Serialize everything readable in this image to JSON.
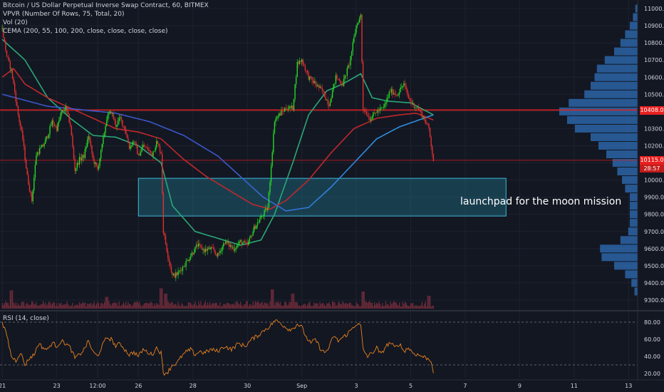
{
  "colors": {
    "background": "#131722",
    "grid": "#1e2230",
    "text": "#d1d4dc",
    "up": "#26d826",
    "down": "#e03030",
    "ema_red": "#c0282c",
    "ema_green": "#2aa876",
    "ema_blue": "#3a56c8",
    "ema_lightblue": "#2e8ee0",
    "vpvr": "#2f6fb8",
    "zone_fill": "#1f6f86",
    "zone_border": "#3fb8d8",
    "rsi_line": "#e8821e",
    "volume": "#6e2b3a",
    "price_line": "#e82020"
  },
  "legend": {
    "title": "Bitcoin / US Dollar Perpetual Inverse Swap Contract, 60, BITMEX",
    "vpvr": "VPVR (Number Of Rows, 75, Total, 20)",
    "vol": "Vol (20)",
    "cema": "CEMA (200, 55, 100, 200, close, close, close, close)"
  },
  "rsi_legend": "RSI (14, close)",
  "annotation": "launchpad for the moon mission",
  "badges": {
    "last_price": "10115.0",
    "countdown": "28:57",
    "resistance": "10408.0"
  },
  "chart_data": [
    {
      "type": "candlestick",
      "title": "Bitcoin / US Dollar Perpetual Inverse Swap Contract, 60, BITMEX",
      "ylim": [
        9250,
        11050
      ],
      "y_ticks": [
        9300,
        9400,
        9500,
        9600,
        9700,
        9800,
        9900,
        10000,
        10100,
        10200,
        10300,
        10400,
        10500,
        10600,
        10700,
        10800,
        10900,
        11000
      ],
      "y_tick_labels": [
        "9300.0",
        "9400.0",
        "9500.0",
        "9600.0",
        "9700.0",
        "9800.0",
        "9900.0",
        "10000.0",
        "10100.0",
        "10200.0",
        "10300.0",
        "10400.0",
        "10500.0",
        "10600.0",
        "10700.0",
        "10800.0",
        "10900.0",
        "11000.0"
      ],
      "x_labels": [
        "21",
        "23",
        "12:00",
        "26",
        "28",
        "30",
        "Sep",
        "3",
        "5",
        "7",
        "9",
        "11",
        "13"
      ],
      "x_label_hours": [
        0,
        48,
        84,
        120,
        168,
        216,
        264,
        312,
        360,
        408,
        456,
        504,
        552
      ],
      "close_price_anchors": [
        [
          0,
          10880
        ],
        [
          4,
          10720
        ],
        [
          8,
          10640
        ],
        [
          10,
          10560
        ],
        [
          14,
          10380
        ],
        [
          18,
          10240
        ],
        [
          22,
          10020
        ],
        [
          26,
          9880
        ],
        [
          30,
          10150
        ],
        [
          36,
          10200
        ],
        [
          40,
          10260
        ],
        [
          44,
          10340
        ],
        [
          48,
          10300
        ],
        [
          52,
          10390
        ],
        [
          56,
          10420
        ],
        [
          60,
          10320
        ],
        [
          64,
          10060
        ],
        [
          68,
          10120
        ],
        [
          72,
          10140
        ],
        [
          76,
          10260
        ],
        [
          80,
          10120
        ],
        [
          84,
          10060
        ],
        [
          88,
          10200
        ],
        [
          92,
          10360
        ],
        [
          96,
          10400
        ],
        [
          100,
          10320
        ],
        [
          104,
          10360
        ],
        [
          108,
          10300
        ],
        [
          112,
          10190
        ],
        [
          116,
          10230
        ],
        [
          120,
          10140
        ],
        [
          124,
          10200
        ],
        [
          128,
          10180
        ],
        [
          132,
          10150
        ],
        [
          136,
          10220
        ],
        [
          140,
          10160
        ],
        [
          142,
          9700
        ],
        [
          146,
          9560
        ],
        [
          150,
          9440
        ],
        [
          154,
          9450
        ],
        [
          160,
          9500
        ],
        [
          166,
          9560
        ],
        [
          172,
          9620
        ],
        [
          178,
          9590
        ],
        [
          184,
          9600
        ],
        [
          190,
          9560
        ],
        [
          196,
          9640
        ],
        [
          204,
          9600
        ],
        [
          210,
          9640
        ],
        [
          216,
          9620
        ],
        [
          222,
          9720
        ],
        [
          228,
          9780
        ],
        [
          234,
          9840
        ],
        [
          236,
          10000
        ],
        [
          240,
          10350
        ],
        [
          244,
          10380
        ],
        [
          250,
          10420
        ],
        [
          256,
          10420
        ],
        [
          260,
          10680
        ],
        [
          264,
          10700
        ],
        [
          270,
          10600
        ],
        [
          276,
          10560
        ],
        [
          282,
          10520
        ],
        [
          288,
          10440
        ],
        [
          294,
          10600
        ],
        [
          300,
          10560
        ],
        [
          306,
          10680
        ],
        [
          312,
          10900
        ],
        [
          316,
          10960
        ],
        [
          318,
          10420
        ],
        [
          324,
          10360
        ],
        [
          330,
          10400
        ],
        [
          336,
          10420
        ],
        [
          342,
          10520
        ],
        [
          348,
          10500
        ],
        [
          354,
          10560
        ],
        [
          358,
          10480
        ],
        [
          362,
          10440
        ],
        [
          366,
          10420
        ],
        [
          370,
          10380
        ],
        [
          376,
          10300
        ],
        [
          380,
          10115
        ]
      ],
      "moving_averages": [
        {
          "period": 55,
          "points": [
            [
              0,
              10820
            ],
            [
              20,
              10700
            ],
            [
              40,
              10480
            ],
            [
              60,
              10360
            ],
            [
              80,
              10260
            ],
            [
              100,
              10250
            ],
            [
              120,
              10200
            ],
            [
              140,
              10100
            ],
            [
              150,
              9850
            ],
            [
              170,
              9700
            ],
            [
              190,
              9660
            ],
            [
              210,
              9620
            ],
            [
              228,
              9650
            ],
            [
              240,
              9800
            ],
            [
              256,
              10100
            ],
            [
              270,
              10380
            ],
            [
              286,
              10520
            ],
            [
              300,
              10560
            ],
            [
              316,
              10620
            ],
            [
              326,
              10480
            ],
            [
              340,
              10460
            ],
            [
              360,
              10450
            ],
            [
              380,
              10380
            ]
          ]
        },
        {
          "period": 100,
          "points": [
            [
              0,
              10600
            ],
            [
              10,
              10650
            ],
            [
              20,
              10560
            ],
            [
              40,
              10480
            ],
            [
              60,
              10420
            ],
            [
              80,
              10360
            ],
            [
              100,
              10300
            ],
            [
              120,
              10280
            ],
            [
              140,
              10240
            ],
            [
              160,
              10120
            ],
            [
              180,
              10020
            ],
            [
              200,
              9940
            ],
            [
              220,
              9860
            ],
            [
              236,
              9830
            ],
            [
              250,
              9880
            ],
            [
              270,
              10000
            ],
            [
              290,
              10160
            ],
            [
              310,
              10300
            ],
            [
              330,
              10360
            ],
            [
              350,
              10380
            ],
            [
              365,
              10390
            ],
            [
              380,
              10350
            ]
          ]
        },
        {
          "period": 200,
          "points": [
            [
              0,
              10500
            ],
            [
              40,
              10430
            ],
            [
              70,
              10410
            ],
            [
              100,
              10390
            ],
            [
              130,
              10340
            ],
            [
              160,
              10260
            ],
            [
              190,
              10140
            ],
            [
              210,
              10020
            ],
            [
              230,
              9900
            ],
            [
              250,
              9820
            ],
            [
              270,
              9840
            ],
            [
              290,
              9960
            ],
            [
              310,
              10100
            ],
            [
              330,
              10240
            ],
            [
              350,
              10310
            ],
            [
              380,
              10380
            ]
          ]
        }
      ],
      "horizontal_lines": [
        10408,
        10115
      ],
      "zone": {
        "label": "launchpad for the moon mission",
        "from_hour": 120,
        "to_hour": 444,
        "y_low": 9790,
        "y_high": 10010
      },
      "volume_profile": {
        "levels": [
          11000,
          10950,
          10900,
          10850,
          10800,
          10750,
          10700,
          10650,
          10600,
          10550,
          10500,
          10450,
          10400,
          10350,
          10300,
          10250,
          10200,
          10150,
          10100,
          10050,
          10000,
          9950,
          9900,
          9850,
          9800,
          9750,
          9700,
          9650,
          9600,
          9550,
          9500,
          9450,
          9400,
          9350
        ],
        "weights": [
          0.03,
          0.06,
          0.1,
          0.16,
          0.22,
          0.3,
          0.42,
          0.52,
          0.55,
          0.6,
          0.68,
          0.88,
          1.0,
          0.9,
          0.8,
          0.6,
          0.5,
          0.4,
          0.32,
          0.26,
          0.2,
          0.16,
          0.1,
          0.1,
          0.1,
          0.1,
          0.12,
          0.22,
          0.48,
          0.46,
          0.3,
          0.16,
          0.08,
          0.04
        ]
      },
      "volume": {
        "typical": 0.3,
        "spikes": [
          [
            8,
            0.85
          ],
          [
            92,
            0.55
          ],
          [
            140,
            0.95
          ],
          [
            144,
            0.7
          ],
          [
            238,
            0.9
          ],
          [
            256,
            0.7
          ],
          [
            318,
            0.8
          ],
          [
            376,
            0.6
          ]
        ]
      }
    },
    {
      "type": "line",
      "title": "RSI (14, close)",
      "ylim": [
        15,
        90
      ],
      "y_ticks": [
        20,
        40,
        60,
        80
      ],
      "y_tick_labels": [
        "20.00",
        "40.00",
        "60.00",
        "80.00"
      ],
      "bands": [
        30,
        80
      ],
      "points": [
        [
          0,
          78
        ],
        [
          4,
          65
        ],
        [
          8,
          40
        ],
        [
          12,
          35
        ],
        [
          16,
          45
        ],
        [
          20,
          30
        ],
        [
          24,
          38
        ],
        [
          28,
          42
        ],
        [
          32,
          55
        ],
        [
          36,
          50
        ],
        [
          40,
          48
        ],
        [
          44,
          56
        ],
        [
          48,
          52
        ],
        [
          52,
          58
        ],
        [
          56,
          55
        ],
        [
          60,
          50
        ],
        [
          64,
          38
        ],
        [
          68,
          42
        ],
        [
          72,
          48
        ],
        [
          76,
          58
        ],
        [
          80,
          45
        ],
        [
          84,
          40
        ],
        [
          88,
          52
        ],
        [
          92,
          62
        ],
        [
          96,
          60
        ],
        [
          100,
          52
        ],
        [
          104,
          55
        ],
        [
          108,
          48
        ],
        [
          112,
          42
        ],
        [
          116,
          45
        ],
        [
          120,
          40
        ],
        [
          124,
          48
        ],
        [
          128,
          45
        ],
        [
          132,
          42
        ],
        [
          136,
          50
        ],
        [
          140,
          44
        ],
        [
          142,
          20
        ],
        [
          146,
          22
        ],
        [
          150,
          30
        ],
        [
          154,
          32
        ],
        [
          158,
          40
        ],
        [
          162,
          45
        ],
        [
          166,
          48
        ],
        [
          170,
          42
        ],
        [
          174,
          46
        ],
        [
          178,
          44
        ],
        [
          184,
          48
        ],
        [
          190,
          46
        ],
        [
          196,
          52
        ],
        [
          202,
          48
        ],
        [
          208,
          55
        ],
        [
          214,
          52
        ],
        [
          220,
          60
        ],
        [
          226,
          65
        ],
        [
          232,
          72
        ],
        [
          236,
          75
        ],
        [
          240,
          82
        ],
        [
          244,
          80
        ],
        [
          248,
          76
        ],
        [
          252,
          72
        ],
        [
          256,
          72
        ],
        [
          260,
          78
        ],
        [
          264,
          74
        ],
        [
          268,
          62
        ],
        [
          272,
          55
        ],
        [
          276,
          60
        ],
        [
          280,
          50
        ],
        [
          284,
          44
        ],
        [
          288,
          50
        ],
        [
          292,
          64
        ],
        [
          296,
          58
        ],
        [
          300,
          62
        ],
        [
          304,
          66
        ],
        [
          308,
          72
        ],
        [
          312,
          78
        ],
        [
          316,
          76
        ],
        [
          318,
          48
        ],
        [
          322,
          40
        ],
        [
          326,
          44
        ],
        [
          330,
          50
        ],
        [
          334,
          42
        ],
        [
          338,
          52
        ],
        [
          342,
          56
        ],
        [
          346,
          50
        ],
        [
          350,
          55
        ],
        [
          354,
          46
        ],
        [
          358,
          50
        ],
        [
          362,
          44
        ],
        [
          366,
          42
        ],
        [
          370,
          40
        ],
        [
          374,
          38
        ],
        [
          378,
          35
        ],
        [
          380,
          22
        ]
      ]
    }
  ]
}
